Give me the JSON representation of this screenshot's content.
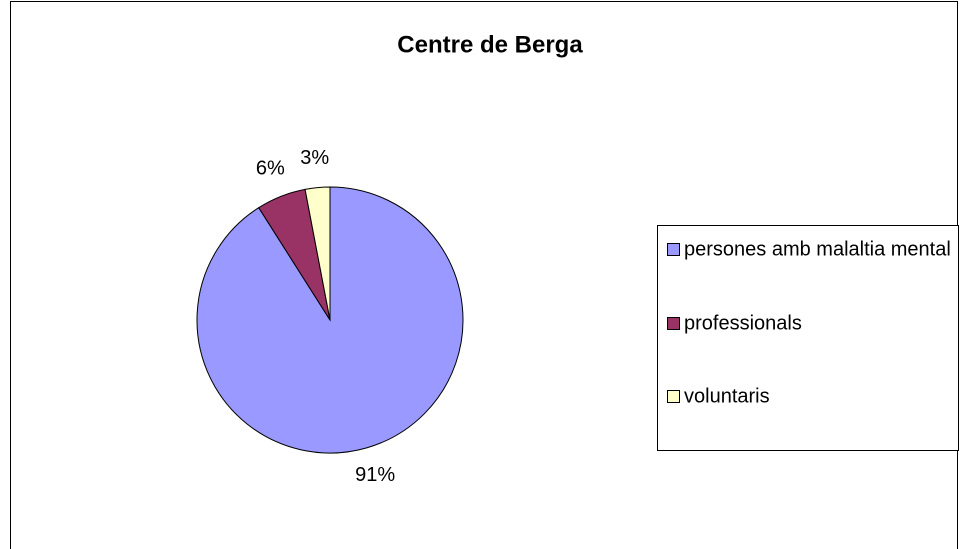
{
  "chart_data": {
    "type": "pie",
    "title": "Centre de Berga",
    "categories": [
      "persones amb malaltia mental",
      "professionals",
      "voluntaris"
    ],
    "values": [
      91,
      6,
      3
    ],
    "value_labels": [
      "91%",
      "6%",
      "3%"
    ],
    "colors": [
      "#9999ff",
      "#993366",
      "#ffffcc"
    ],
    "legend": "right"
  }
}
